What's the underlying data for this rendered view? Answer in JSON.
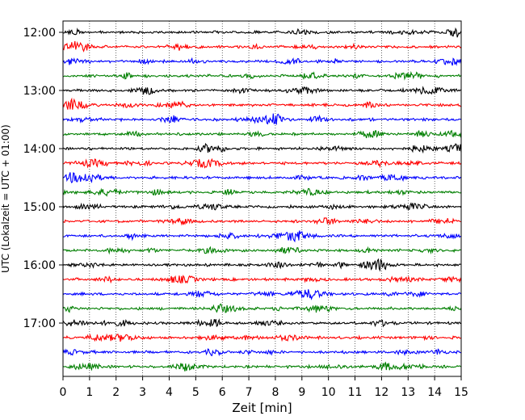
{
  "chart_data": {
    "type": "line",
    "title": "",
    "xlabel": "Zeit  [min]",
    "ylabel": "UTC (Lokalzeit = UTC + 01:00)",
    "xlim": [
      0,
      15
    ],
    "xticks": [
      0,
      1,
      2,
      3,
      4,
      5,
      6,
      7,
      8,
      9,
      10,
      11,
      12,
      13,
      14,
      15
    ],
    "xtick_labels": [
      "0",
      "1",
      "2",
      "3",
      "4",
      "5",
      "6",
      "7",
      "8",
      "9",
      "10",
      "11",
      "12",
      "13",
      "14",
      "15"
    ],
    "grid_x": true,
    "grid_style": "dotted",
    "ytick_labels": [
      "12:00",
      "13:00",
      "14:00",
      "15:00",
      "16:00",
      "17:00"
    ],
    "ytick_hours": [
      12,
      13,
      14,
      15,
      16,
      17
    ],
    "trace_interval_minutes": 15,
    "start_hour": 12,
    "trace_count": 24,
    "colors": [
      "#000000",
      "#ff0000",
      "#0000ff",
      "#007f00"
    ]
  }
}
